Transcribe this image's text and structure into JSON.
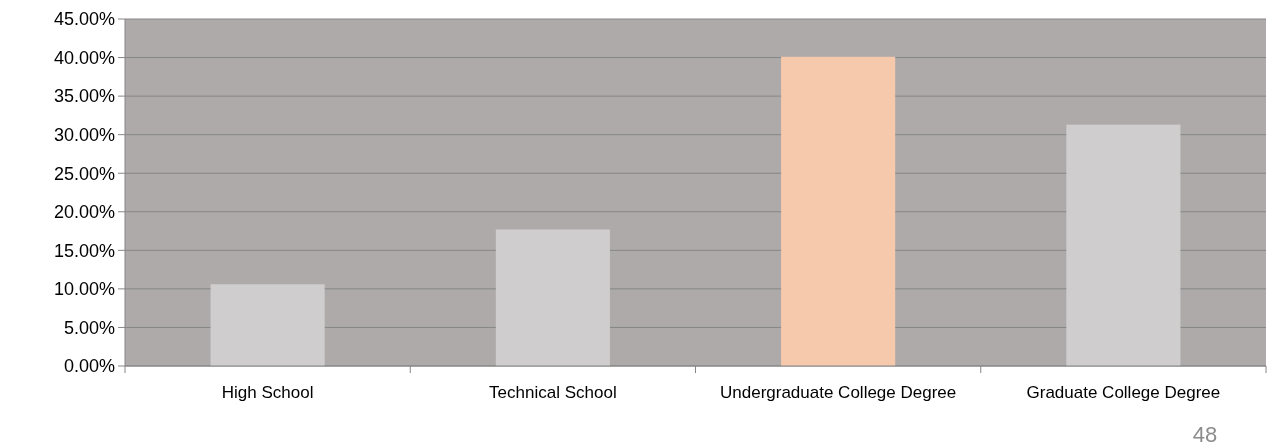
{
  "chart_data": {
    "type": "bar",
    "categories": [
      "High School",
      "Technical School",
      "Undergraduate College Degree",
      "Graduate College Degree"
    ],
    "values": [
      10.6,
      17.7,
      40.1,
      31.3
    ],
    "colors": [
      "#cfcdce",
      "#cfcdce",
      "#f6c9ac",
      "#cfcdce"
    ],
    "ylim": [
      0,
      45
    ],
    "yticks": [
      {
        "value": 0,
        "label": "0.00%"
      },
      {
        "value": 5,
        "label": "5.00%"
      },
      {
        "value": 10,
        "label": "10.00%"
      },
      {
        "value": 15,
        "label": "15.00%"
      },
      {
        "value": 20,
        "label": "20.00%"
      },
      {
        "value": 25,
        "label": "25.00%"
      },
      {
        "value": 30,
        "label": "30.00%"
      },
      {
        "value": 35,
        "label": "35.00%"
      },
      {
        "value": 40,
        "label": "40.00%"
      },
      {
        "value": 45,
        "label": "45.00%"
      }
    ],
    "grid": "y",
    "annotations": [
      "48"
    ]
  }
}
